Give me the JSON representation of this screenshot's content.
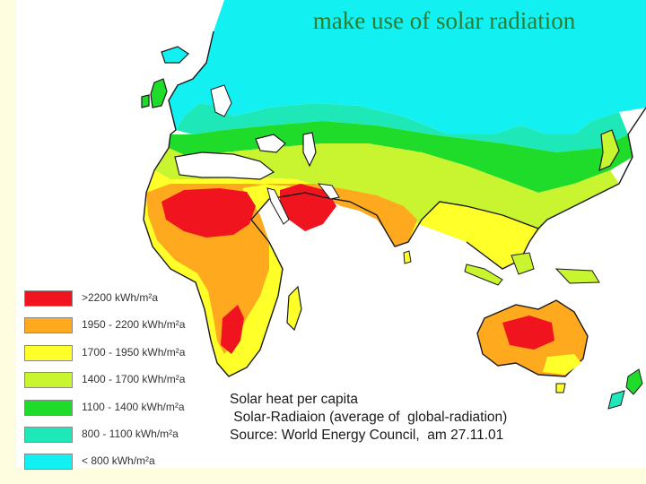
{
  "title": "make use of solar radiation",
  "legend": [
    {
      "label": ">2200 kWh/m²a",
      "color": "#f0141e"
    },
    {
      "label": "1950 - 2200 kWh/m²a",
      "color": "#ffa91e"
    },
    {
      "label": "1700 - 1950 kWh/m²a",
      "color": "#ffff2a"
    },
    {
      "label": "1400 - 1700 kWh/m²a",
      "color": "#c9f530"
    },
    {
      "label": "1100 - 1400 kWh/m²a",
      "color": "#1fdc2b"
    },
    {
      "label": "800 - 1100 kWh/m²a",
      "color": "#1fe8b8"
    },
    {
      "label": "< 800 kWh/m²a",
      "color": "#12f0f2"
    }
  ],
  "caption": {
    "line1": "Solar heat per capita",
    "line2": " Solar-Radiaion (average of  global-radiation)",
    "line3": "Source: World Energy Council,  am 27.11.01"
  }
}
